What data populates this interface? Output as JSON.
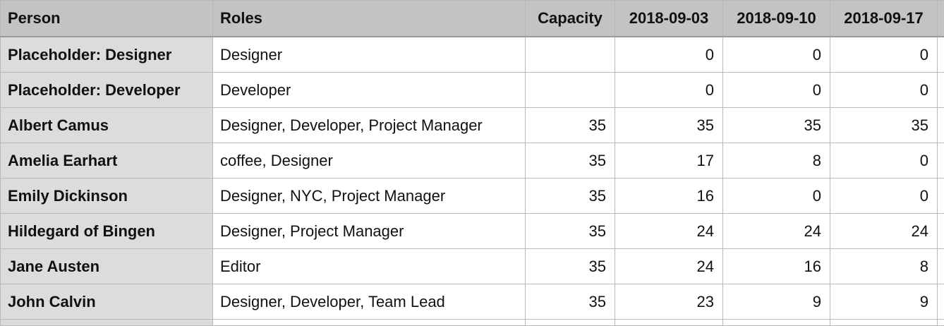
{
  "table": {
    "columns": [
      "Person",
      "Roles",
      "Capacity",
      "2018-09-03",
      "2018-09-10",
      "2018-09-17"
    ],
    "rows": [
      [
        "Placeholder: Designer",
        "Designer",
        null,
        0,
        0,
        0
      ],
      [
        "Placeholder: Developer",
        "Developer",
        null,
        0,
        0,
        0
      ],
      [
        "Albert Camus",
        "Designer, Developer, Project Manager",
        35,
        35,
        35,
        35
      ],
      [
        "Amelia Earhart",
        "coffee, Designer",
        35,
        17,
        8,
        0
      ],
      [
        "Emily Dickinson",
        "Designer, NYC, Project Manager",
        35,
        16,
        0,
        0
      ],
      [
        "Hildegard of Bingen",
        "Designer, Project Manager",
        35,
        24,
        24,
        24
      ],
      [
        "Jane Austen",
        "Editor",
        35,
        24,
        16,
        8
      ],
      [
        "John Calvin",
        "Designer, Developer, Team Lead",
        35,
        23,
        9,
        9
      ]
    ]
  }
}
